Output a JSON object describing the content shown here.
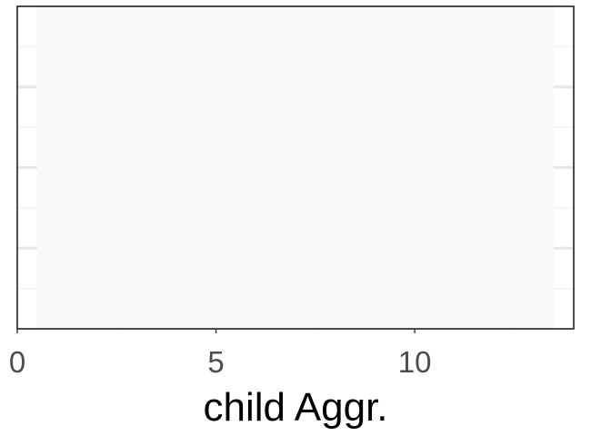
{
  "chart_data": {
    "type": "bar",
    "title": "",
    "xlabel": "child Aggr.",
    "ylabel": "",
    "xlim": [
      0,
      14
    ],
    "x_ticks": [
      0,
      5,
      10
    ],
    "x_tick_labels": [
      "0",
      "5",
      "10"
    ],
    "ylim": [
      0,
      4
    ],
    "y_ticks": [],
    "series": [
      {
        "x": [
          1,
          2,
          3,
          4,
          5,
          6,
          7,
          8,
          9,
          10,
          11,
          12,
          13
        ],
        "values": [
          4,
          4,
          4,
          4,
          4,
          4,
          4,
          4,
          4,
          4,
          4,
          4,
          4
        ]
      }
    ],
    "grid": true,
    "legend": "none",
    "colors": {
      "bar_fill": "#f9f9f9",
      "grid_major": "#e6e6e6",
      "grid_minor": "#f2f2f2",
      "panel_border": "#000000"
    }
  }
}
